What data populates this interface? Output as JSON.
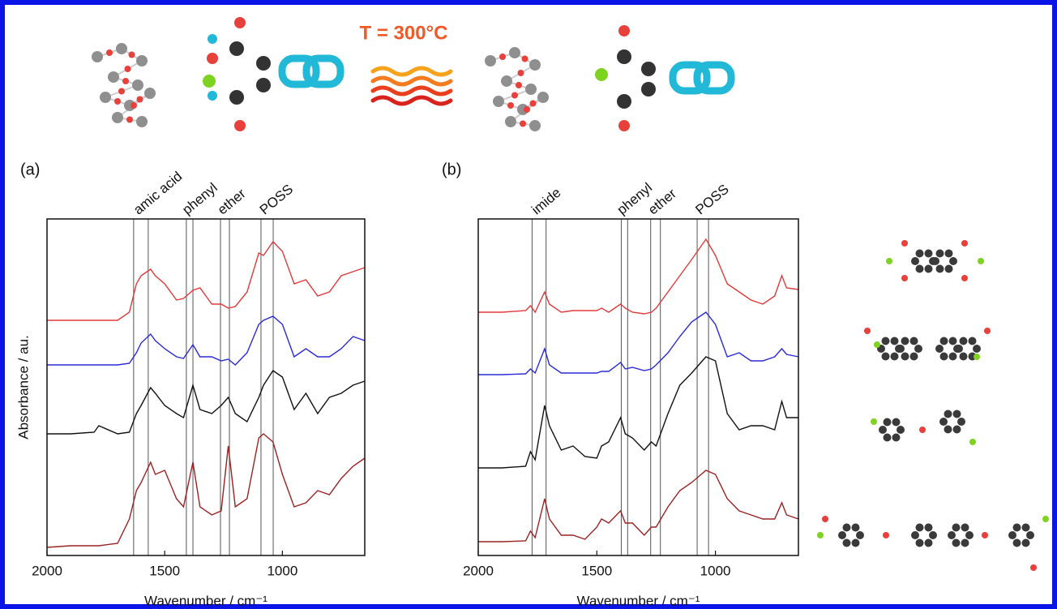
{
  "scheme": {
    "text": "T = 300°C"
  },
  "chart_data": [
    {
      "type": "line",
      "label": "(a)",
      "xlabel": "Wavenumber / cm⁻¹",
      "ylabel": "Absorbance / au.",
      "xlim": [
        2000,
        650
      ],
      "ylim": [
        0,
        415
      ],
      "xticks": [
        2000,
        1500,
        1000
      ],
      "x": [
        2000,
        1900,
        1800,
        1780,
        1700,
        1650,
        1620,
        1600,
        1560,
        1540,
        1500,
        1450,
        1420,
        1380,
        1350,
        1300,
        1260,
        1230,
        1200,
        1150,
        1100,
        1080,
        1040,
        1000,
        950,
        900,
        850,
        800,
        750,
        700,
        650
      ],
      "series": [
        {
          "color": "#e03a3a",
          "values": [
            290,
            290,
            290,
            290,
            290,
            300,
            335,
            345,
            353,
            345,
            335,
            315,
            317,
            327,
            330,
            310,
            310,
            305,
            307,
            325,
            373,
            370,
            387,
            375,
            335,
            340,
            320,
            325,
            345,
            350,
            355
          ]
        },
        {
          "color": "#2a2ad6",
          "values": [
            235,
            235,
            235,
            235,
            235,
            237,
            250,
            262,
            273,
            265,
            255,
            245,
            243,
            260,
            245,
            245,
            240,
            242,
            235,
            250,
            285,
            290,
            295,
            285,
            245,
            255,
            245,
            245,
            255,
            270,
            265
          ]
        },
        {
          "color": "#111111",
          "values": [
            150,
            150,
            152,
            160,
            150,
            152,
            175,
            185,
            207,
            200,
            185,
            175,
            170,
            210,
            180,
            175,
            185,
            195,
            175,
            165,
            195,
            210,
            228,
            220,
            180,
            200,
            175,
            195,
            200,
            210,
            215
          ]
        },
        {
          "color": "#9b2222",
          "values": [
            10,
            12,
            12,
            12,
            15,
            45,
            80,
            90,
            115,
            100,
            105,
            70,
            60,
            115,
            60,
            50,
            55,
            135,
            60,
            70,
            145,
            150,
            140,
            100,
            60,
            65,
            80,
            75,
            95,
            110,
            120
          ]
        }
      ],
      "bands": [
        {
          "label": "amic acid",
          "lines": [
            1632,
            1570
          ]
        },
        {
          "label": "phenyl",
          "lines": [
            1408,
            1380
          ]
        },
        {
          "label": "ether",
          "lines": [
            1263,
            1225
          ]
        },
        {
          "label": "POSS",
          "lines": [
            1091,
            1039
          ]
        }
      ]
    },
    {
      "type": "line",
      "label": "(b)",
      "xlabel": "Wavenumber / cm⁻¹",
      "xlim": [
        2000,
        650
      ],
      "ylim": [
        0,
        415
      ],
      "xticks": [
        2000,
        1500,
        1000
      ],
      "x": [
        2000,
        1900,
        1800,
        1780,
        1760,
        1720,
        1700,
        1650,
        1600,
        1550,
        1500,
        1480,
        1450,
        1400,
        1380,
        1350,
        1300,
        1270,
        1250,
        1200,
        1150,
        1100,
        1040,
        1000,
        950,
        900,
        850,
        800,
        750,
        720,
        700,
        650
      ],
      "series": [
        {
          "color": "#e03a3a",
          "values": [
            300,
            300,
            302,
            308,
            300,
            325,
            310,
            300,
            302,
            302,
            302,
            305,
            300,
            310,
            305,
            300,
            298,
            300,
            305,
            325,
            345,
            365,
            390,
            370,
            335,
            325,
            315,
            310,
            320,
            345,
            330,
            328
          ]
        },
        {
          "color": "#2a2ad6",
          "values": [
            223,
            223,
            224,
            230,
            225,
            255,
            235,
            225,
            225,
            225,
            225,
            227,
            227,
            238,
            230,
            232,
            228,
            230,
            235,
            250,
            270,
            288,
            300,
            285,
            245,
            250,
            240,
            240,
            245,
            255,
            248,
            245
          ]
        },
        {
          "color": "#111111",
          "values": [
            108,
            108,
            110,
            128,
            118,
            185,
            160,
            130,
            135,
            122,
            120,
            135,
            140,
            170,
            150,
            145,
            130,
            140,
            135,
            175,
            210,
            225,
            245,
            240,
            175,
            155,
            160,
            160,
            155,
            190,
            170,
            170
          ]
        },
        {
          "color": "#9b2222",
          "values": [
            17,
            17,
            18,
            30,
            22,
            70,
            45,
            25,
            25,
            20,
            35,
            45,
            40,
            55,
            40,
            40,
            25,
            35,
            35,
            60,
            80,
            90,
            105,
            100,
            70,
            55,
            50,
            45,
            45,
            65,
            50,
            45
          ]
        }
      ],
      "bands": [
        {
          "label": "imide",
          "lines": [
            1773,
            1714
          ]
        },
        {
          "label": "phenyl",
          "lines": [
            1397,
            1370
          ]
        },
        {
          "label": "ether",
          "lines": [
            1273,
            1232
          ]
        },
        {
          "label": "POSS",
          "lines": [
            1077,
            1029
          ]
        }
      ]
    }
  ]
}
